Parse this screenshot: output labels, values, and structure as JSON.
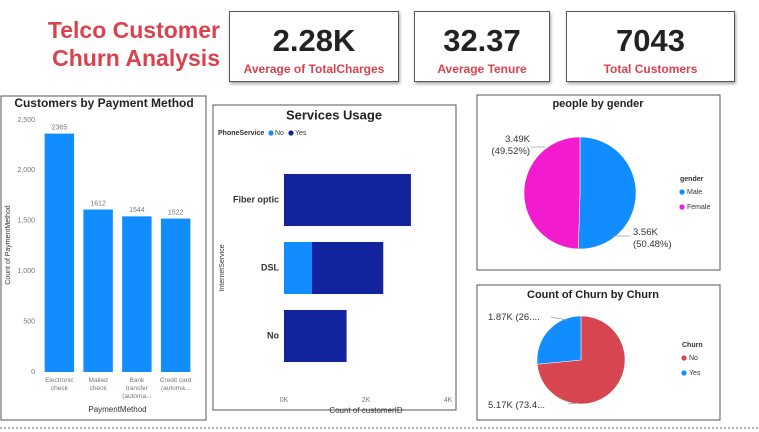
{
  "title": "Telco Customer Churn Analysis",
  "cards": [
    {
      "value": "2.28K",
      "label": "Average of TotalCharges"
    },
    {
      "value": "32.37",
      "label": "Average Tenure"
    },
    {
      "value": "7043",
      "label": "Total Customers"
    }
  ],
  "chart_data": [
    {
      "type": "bar",
      "title": "Customers by Payment Method",
      "categories": [
        "Electronic check",
        "Mailed check",
        "Bank transfer (automa...",
        "Credit card (automa..."
      ],
      "values": [
        2365,
        1612,
        1544,
        1522
      ],
      "color": "#118DFF",
      "x_label": "PaymentMethod",
      "y_label": "Count of PaymentMethod",
      "ylim": [
        0,
        2500
      ],
      "yticks": [
        0,
        500,
        {
          "value": 1000,
          "label": "1,000"
        },
        {
          "value": 1500,
          "label": "1,500"
        },
        {
          "value": 2000,
          "label": "2,000"
        },
        {
          "value": 2500,
          "label": "2,500"
        }
      ],
      "grid": false
    },
    {
      "type": "stackedhbar",
      "title": "Services Usage",
      "legend_title": "PhoneService",
      "categories": [
        "Fiber optic",
        "DSL",
        "No"
      ],
      "series": [
        {
          "name": "No",
          "color": "#118DFF",
          "values": [
            0,
            682,
            0
          ]
        },
        {
          "name": "Yes",
          "color": "#12239E",
          "values": [
            3096,
            1739,
            1526
          ]
        }
      ],
      "x_label": "Count of customerID",
      "y_label": "InternetService",
      "xlim": [
        0,
        4000
      ],
      "xticks": [
        {
          "value": 0,
          "label": "0K"
        },
        {
          "value": 2000,
          "label": "2K"
        },
        {
          "value": 4000,
          "label": "4K"
        }
      ]
    },
    {
      "type": "pie",
      "title": "people by gender",
      "legend_title": "gender",
      "categories": [
        "Male",
        "Female"
      ],
      "values": [
        3555,
        3488
      ],
      "value_labels": [
        "3.56K (50.48%)",
        "3.49K (49.52%)"
      ],
      "colors": [
        "#118DFF",
        "#F21BD0"
      ]
    },
    {
      "type": "pie",
      "title": "Count of Churn by Churn",
      "legend_title": "Churn",
      "categories": [
        "No",
        "Yes"
      ],
      "values": [
        5174,
        1869
      ],
      "value_labels": [
        "5.17K (73.4...",
        "1.87K (26...."
      ],
      "colors": [
        "#D64550",
        "#118DFF"
      ]
    }
  ]
}
